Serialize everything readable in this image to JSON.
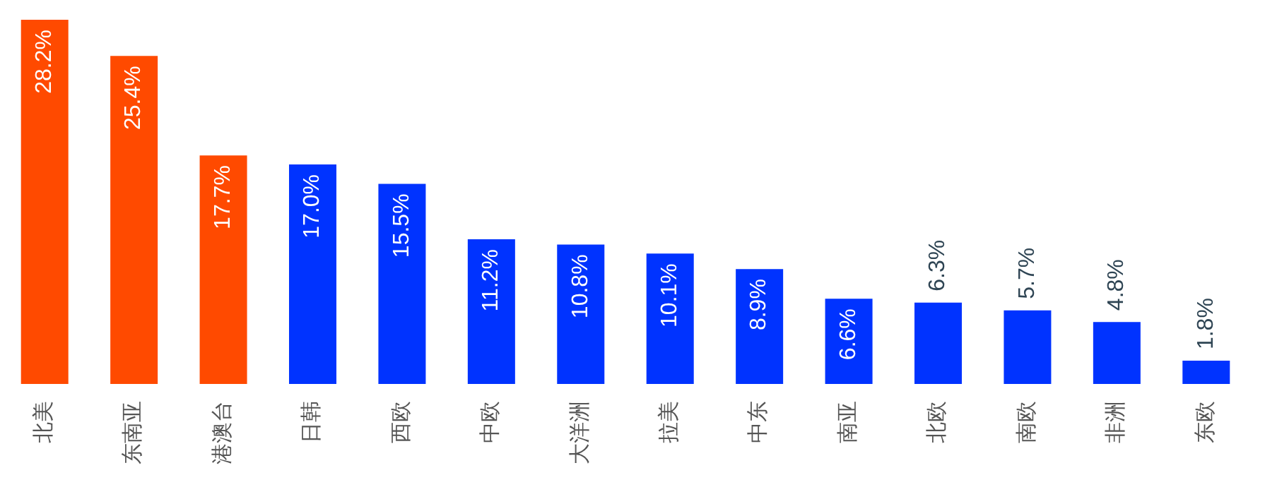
{
  "chart_data": {
    "type": "bar",
    "categories": [
      "北美",
      "东南亚",
      "港澳台",
      "日韩",
      "西欧",
      "中欧",
      "大洋洲",
      "拉美",
      "中东",
      "南亚",
      "北欧",
      "南欧",
      "非洲",
      "东欧"
    ],
    "values": [
      28.2,
      25.4,
      17.7,
      17.0,
      15.5,
      11.2,
      10.8,
      10.1,
      8.9,
      6.6,
      6.3,
      5.7,
      4.8,
      1.8
    ],
    "value_labels": [
      "28.2%",
      "25.4%",
      "17.7%",
      "17.0%",
      "15.5%",
      "11.2%",
      "10.8%",
      "10.1%",
      "8.9%",
      "6.6%",
      "6.3%",
      "5.7%",
      "4.8%",
      "1.8%"
    ],
    "colors": [
      "#ff4a00",
      "#ff4a00",
      "#ff4a00",
      "#0033ff",
      "#0033ff",
      "#0033ff",
      "#0033ff",
      "#0033ff",
      "#0033ff",
      "#0033ff",
      "#0033ff",
      "#0033ff",
      "#0033ff",
      "#0033ff"
    ],
    "grid": false,
    "legend": false
  }
}
